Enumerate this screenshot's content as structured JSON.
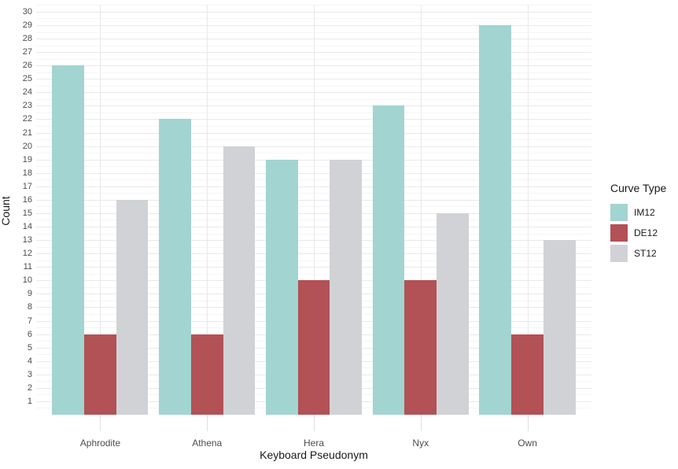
{
  "chart_data": {
    "type": "bar",
    "title": "",
    "xlabel": "Keyboard Pseudonym",
    "ylabel": "Count",
    "categories": [
      "Aphrodite",
      "Athena",
      "Hera",
      "Nyx",
      "Own"
    ],
    "series": [
      {
        "name": "IM12",
        "color": "#a2d4d2",
        "values": [
          26,
          22,
          19,
          23,
          29
        ]
      },
      {
        "name": "DE12",
        "color": "#b25156",
        "values": [
          6,
          6,
          10,
          10,
          6
        ]
      },
      {
        "name": "ST12",
        "color": "#d1d2d6",
        "values": [
          16,
          20,
          19,
          15,
          13
        ]
      }
    ],
    "ylim": [
      0,
      30
    ],
    "y_ticks": [
      1,
      2,
      3,
      4,
      5,
      6,
      7,
      8,
      9,
      10,
      11,
      12,
      13,
      14,
      15,
      16,
      17,
      18,
      19,
      20,
      21,
      22,
      23,
      24,
      25,
      26,
      27,
      28,
      29,
      30
    ],
    "grid": "horizontal major+minor, vertical major at group centers",
    "legend_title": "Curve Type",
    "legend_position": "right",
    "colors": {
      "grid_major": "#e9e9e9",
      "grid_minor": "#f5f5f5",
      "tick_label": "#4d4d4d",
      "axis_title": "#1a1a1a"
    }
  }
}
